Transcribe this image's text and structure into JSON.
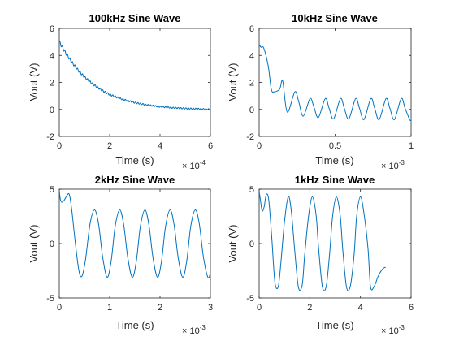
{
  "chart_data": [
    {
      "type": "line",
      "title": "100kHz Sine Wave",
      "xlabel": "Time (s)",
      "ylabel": "Vout (V)",
      "x_multiplier": "× 10^-4",
      "x_mult_base": "× 10",
      "x_mult_exp": "-4",
      "xlim": [
        0,
        6
      ],
      "ylim": [
        -2,
        6
      ],
      "xticks": [
        0,
        2,
        4,
        6
      ],
      "yticks": [
        -2,
        0,
        2,
        4,
        6
      ],
      "color": "#0072BD",
      "series": [
        {
          "x": [
            0,
            0.25,
            0.5,
            0.75,
            1.0,
            1.25,
            1.5,
            1.75,
            2.0,
            2.5,
            3.0,
            3.5,
            4.0,
            4.5,
            5.0,
            5.5,
            6.0
          ],
          "values": [
            5.0,
            4.2,
            3.5,
            2.9,
            2.4,
            2.0,
            1.65,
            1.35,
            1.1,
            0.75,
            0.5,
            0.32,
            0.2,
            0.12,
            0.07,
            0.04,
            0.0
          ],
          "ripple_amplitude": 0.12,
          "ripple_periods_per_unit": 10
        }
      ]
    },
    {
      "type": "line",
      "title": "10kHz Sine Wave",
      "xlabel": "Time (s)",
      "ylabel": "Vout (V)",
      "x_multiplier": "× 10^-3",
      "x_mult_base": "× 10",
      "x_mult_exp": "-3",
      "xlim": [
        0,
        1
      ],
      "ylim": [
        -2,
        6
      ],
      "xticks": [
        0,
        0.5,
        1
      ],
      "yticks": [
        -2,
        0,
        2,
        4,
        6
      ],
      "color": "#0072BD",
      "series": [
        {
          "x": [
            0,
            0.013,
            0.03,
            0.06,
            0.08,
            0.1,
            0.135,
            0.155,
            0.185,
            0.235,
            0.26,
            0.29,
            0.335,
            0.36,
            0.39,
            0.435,
            0.46,
            0.49,
            0.535,
            0.56,
            0.59,
            0.635,
            0.66,
            0.69,
            0.735,
            0.76,
            0.79,
            0.835,
            0.86,
            0.89,
            0.935,
            0.96,
            0.99,
            1.0
          ],
          "values": [
            4.8,
            4.6,
            4.55,
            3.2,
            1.5,
            1.3,
            1.5,
            2.1,
            -0.2,
            1.3,
            0.6,
            -0.5,
            0.8,
            0.2,
            -0.6,
            0.8,
            0.1,
            -0.7,
            0.8,
            0.1,
            -0.7,
            0.8,
            0.1,
            -0.75,
            0.8,
            0.1,
            -0.75,
            0.8,
            0.1,
            -0.75,
            0.8,
            0.1,
            -0.75,
            -0.8
          ]
        }
      ]
    },
    {
      "type": "line",
      "title": "2kHz Sine Wave",
      "xlabel": "Time (s)",
      "ylabel": "Vout (V)",
      "x_multiplier": "× 10^-3",
      "x_mult_base": "× 10",
      "x_mult_exp": "-3",
      "xlim": [
        0,
        3
      ],
      "ylim": [
        -5,
        5
      ],
      "xticks": [
        0,
        1,
        2,
        3
      ],
      "yticks": [
        -5,
        0,
        5
      ],
      "color": "#0072BD",
      "series": [
        {
          "x": [
            0,
            0.02,
            0.05,
            0.1,
            0.15,
            0.2,
            0.25,
            0.32,
            0.39,
            0.45,
            0.52,
            0.61,
            0.7,
            0.78,
            0.86,
            0.95,
            1.03,
            1.11,
            1.2,
            1.28,
            1.36,
            1.45,
            1.53,
            1.61,
            1.7,
            1.78,
            1.86,
            1.95,
            2.03,
            2.11,
            2.2,
            2.28,
            2.36,
            2.45,
            2.53,
            2.61,
            2.7,
            2.78,
            2.86,
            2.95,
            3.0
          ],
          "values": [
            4.9,
            4.1,
            3.8,
            4.0,
            4.4,
            4.5,
            3.0,
            0.0,
            -2.5,
            -3.0,
            -1.5,
            1.8,
            3.1,
            1.8,
            -1.2,
            -3.1,
            -1.6,
            1.6,
            3.1,
            1.7,
            -1.3,
            -3.1,
            -1.6,
            1.6,
            3.1,
            1.7,
            -1.3,
            -3.1,
            -1.6,
            1.6,
            3.1,
            1.7,
            -1.3,
            -3.1,
            -1.6,
            1.6,
            3.1,
            1.8,
            -1.2,
            -3.1,
            -2.7
          ]
        }
      ]
    },
    {
      "type": "line",
      "title": "1kHz Sine Wave",
      "xlabel": "Time (s)",
      "ylabel": "Vout (V)",
      "x_multiplier": "× 10^-3",
      "x_mult_base": "× 10",
      "x_mult_exp": "-3",
      "xlim": [
        0,
        6
      ],
      "ylim": [
        -5,
        5
      ],
      "xticks": [
        0,
        2,
        4,
        6
      ],
      "yticks": [
        -5,
        0,
        5
      ],
      "color": "#0072BD",
      "series": [
        {
          "x": [
            0,
            0.05,
            0.12,
            0.2,
            0.28,
            0.38,
            0.5,
            0.62,
            0.75,
            0.85,
            1.0,
            1.15,
            1.27,
            1.4,
            1.55,
            1.7,
            1.8,
            1.95,
            2.1,
            2.25,
            2.35,
            2.5,
            2.65,
            2.78,
            2.9,
            3.05,
            3.2,
            3.3,
            3.45,
            3.6,
            3.75,
            3.85,
            4.0,
            4.15,
            4.3,
            4.4,
            4.55,
            4.7,
            4.85,
            4.95,
            5.0
          ],
          "values": [
            4.8,
            4.0,
            3.0,
            3.4,
            4.5,
            4.0,
            0.5,
            -3.5,
            -4.0,
            -2.0,
            2.0,
            4.3,
            3.0,
            -0.5,
            -4.0,
            -3.8,
            -1.0,
            2.5,
            4.3,
            2.6,
            -0.5,
            -4.0,
            -3.9,
            -1.0,
            2.5,
            4.3,
            2.6,
            -0.5,
            -4.0,
            -3.9,
            -1.0,
            2.5,
            4.3,
            2.6,
            -0.5,
            -4.0,
            -3.9,
            -3.0,
            -2.4,
            -2.2,
            -2.2
          ]
        }
      ]
    }
  ]
}
